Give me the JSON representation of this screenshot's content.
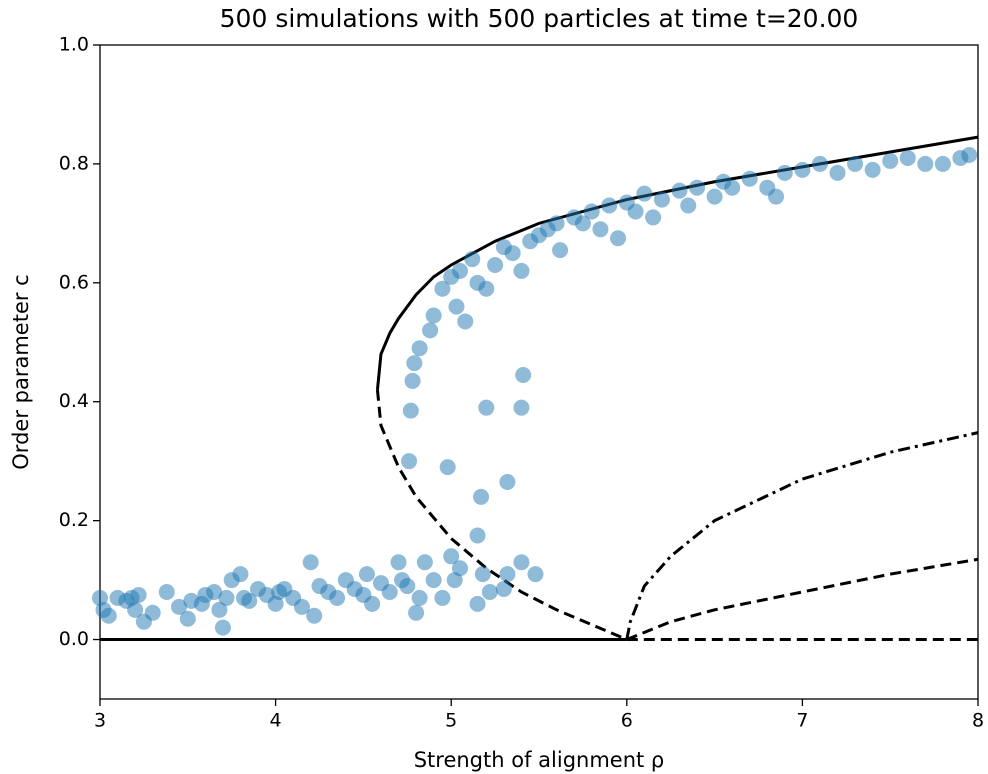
{
  "chart_data": {
    "type": "scatter",
    "title": "500 simulations with 500 particles at time t=20.00",
    "xlabel": "Strength of alignment ρ",
    "ylabel": "Order parameter c",
    "xlim": [
      3,
      8
    ],
    "ylim": [
      -0.1,
      1.0
    ],
    "xticks": [
      3,
      4,
      5,
      6,
      7,
      8
    ],
    "yticks": [
      {
        "value": 0,
        "label": "0.0"
      },
      {
        "value": 0.2,
        "label": "0.2"
      },
      {
        "value": 0.4,
        "label": "0.4"
      },
      {
        "value": 0.6,
        "label": "0.6"
      },
      {
        "value": 0.8,
        "label": "0.8"
      },
      {
        "value": 1.0,
        "label": "1.0"
      }
    ],
    "series": [
      {
        "type": "scatter",
        "color": "#1f77b4",
        "x": [
          3.0,
          3.02,
          3.05,
          3.1,
          3.15,
          3.18,
          3.2,
          3.22,
          3.25,
          3.3,
          3.38,
          3.45,
          3.5,
          3.52,
          3.58,
          3.6,
          3.65,
          3.68,
          3.7,
          3.72,
          3.75,
          3.8,
          3.82,
          3.85,
          3.9,
          3.95,
          4.0,
          4.02,
          4.05,
          4.1,
          4.15,
          4.2,
          4.22,
          4.25,
          4.3,
          4.35,
          4.4,
          4.45,
          4.5,
          4.52,
          4.55,
          4.6,
          4.65,
          4.7,
          4.72,
          4.75,
          4.8,
          4.82,
          4.85,
          4.9,
          4.95,
          5.0,
          5.02,
          5.05,
          5.15,
          5.18,
          5.22,
          5.3,
          5.32,
          5.4,
          5.48,
          4.76,
          4.77,
          4.78,
          4.79,
          4.98,
          5.15,
          5.17,
          5.2,
          5.32,
          5.4,
          5.41,
          4.82,
          4.88,
          4.9,
          4.95,
          5.0,
          5.03,
          5.05,
          5.08,
          5.12,
          5.15,
          5.2,
          5.25,
          5.3,
          5.35,
          5.4,
          5.45,
          5.5,
          5.55,
          5.6,
          5.62,
          5.7,
          5.75,
          5.8,
          5.85,
          5.9,
          5.95,
          6.0,
          6.05,
          6.1,
          6.15,
          6.2,
          6.3,
          6.35,
          6.4,
          6.5,
          6.55,
          6.6,
          6.7,
          6.8,
          6.85,
          6.9,
          7.0,
          7.1,
          7.2,
          7.3,
          7.4,
          7.5,
          7.6,
          7.7,
          7.8,
          7.9,
          7.95
        ],
        "values": [
          0.07,
          0.05,
          0.04,
          0.07,
          0.065,
          0.07,
          0.05,
          0.075,
          0.03,
          0.045,
          0.08,
          0.055,
          0.035,
          0.065,
          0.06,
          0.075,
          0.08,
          0.05,
          0.02,
          0.07,
          0.1,
          0.11,
          0.07,
          0.065,
          0.085,
          0.075,
          0.06,
          0.08,
          0.085,
          0.07,
          0.055,
          0.13,
          0.04,
          0.09,
          0.08,
          0.07,
          0.1,
          0.085,
          0.075,
          0.11,
          0.06,
          0.095,
          0.08,
          0.13,
          0.1,
          0.09,
          0.045,
          0.07,
          0.13,
          0.1,
          0.07,
          0.14,
          0.1,
          0.12,
          0.06,
          0.11,
          0.08,
          0.085,
          0.11,
          0.13,
          0.11,
          0.3,
          0.385,
          0.435,
          0.465,
          0.29,
          0.175,
          0.24,
          0.39,
          0.265,
          0.39,
          0.445,
          0.49,
          0.52,
          0.545,
          0.59,
          0.61,
          0.56,
          0.62,
          0.535,
          0.64,
          0.6,
          0.59,
          0.63,
          0.66,
          0.65,
          0.62,
          0.67,
          0.68,
          0.69,
          0.7,
          0.655,
          0.71,
          0.7,
          0.72,
          0.69,
          0.73,
          0.675,
          0.735,
          0.72,
          0.75,
          0.71,
          0.74,
          0.755,
          0.73,
          0.76,
          0.745,
          0.77,
          0.76,
          0.775,
          0.76,
          0.745,
          0.785,
          0.79,
          0.8,
          0.785,
          0.8,
          0.79,
          0.805,
          0.81,
          0.8,
          0.8,
          0.81,
          0.815
        ]
      },
      {
        "type": "line",
        "style": "solid",
        "color": "#000000",
        "x": [
          4.58,
          4.6,
          4.65,
          4.7,
          4.8,
          4.9,
          5.0,
          5.25,
          5.5,
          6.0,
          6.5,
          7.0,
          7.5,
          8.0
        ],
        "values": [
          0.42,
          0.48,
          0.515,
          0.54,
          0.58,
          0.61,
          0.63,
          0.67,
          0.7,
          0.74,
          0.77,
          0.795,
          0.82,
          0.845
        ]
      },
      {
        "type": "line",
        "style": "dashed",
        "color": "#000000",
        "x": [
          4.58,
          4.6,
          4.7,
          4.8,
          5.0,
          5.2,
          5.4,
          5.6,
          5.8,
          6.0
        ],
        "values": [
          0.42,
          0.36,
          0.29,
          0.24,
          0.17,
          0.12,
          0.08,
          0.05,
          0.025,
          0
        ]
      },
      {
        "type": "line",
        "style": "dashdot",
        "color": "#000000",
        "x": [
          6.0,
          6.02,
          6.1,
          6.25,
          6.5,
          7.0,
          7.5,
          8.0
        ],
        "values": [
          0,
          0.03,
          0.09,
          0.14,
          0.2,
          0.27,
          0.315,
          0.348
        ]
      },
      {
        "type": "line",
        "style": "dashed",
        "color": "#000000",
        "x": [
          6.0,
          6.25,
          6.5,
          7.0,
          7.5,
          8.0
        ],
        "values": [
          0,
          0.03,
          0.05,
          0.08,
          0.11,
          0.135
        ]
      },
      {
        "type": "line",
        "style": "solid",
        "color": "#000000",
        "x": [
          3,
          6
        ],
        "values": [
          0,
          0
        ]
      },
      {
        "type": "line",
        "style": "dashed",
        "color": "#000000",
        "x": [
          6,
          8
        ],
        "values": [
          0,
          0
        ]
      }
    ]
  }
}
